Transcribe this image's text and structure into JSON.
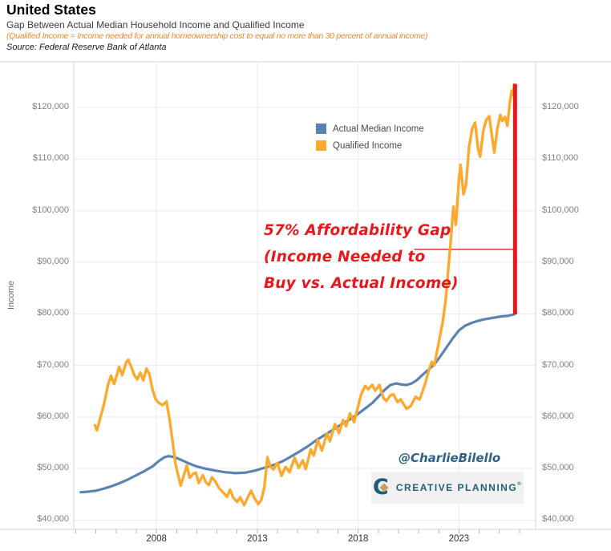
{
  "header": {
    "title": "United States",
    "subtitle": "Gap Between Actual Median Household Income and Qualified Income",
    "note": "(Qualified Income = Income needed for annual homeownership cost to equal no more than 30 percent of annual income)",
    "source": "Source: Federal Reserve Bank of Atlanta"
  },
  "y_axis_title": "Income",
  "watermark": "@CharlieBilello",
  "logo": {
    "company": "CREATIVE PLANNING",
    "reg_mark": "®"
  },
  "annotation": {
    "lines": [
      "57% Affordability Gap",
      "(Income Needed to",
      "Buy vs. Actual Income)"
    ],
    "color": "#e8171d"
  },
  "chart_data": {
    "type": "line",
    "title": "Gap Between Actual Median Household Income and Qualified Income",
    "xlabel": "",
    "ylabel": "Income",
    "grid": true,
    "legend_position": "top-center-inside",
    "x_domain": [
      2003.9,
      2026.8
    ],
    "y_domain": [
      38200,
      128900
    ],
    "x_ticks": [
      {
        "year": 2008,
        "label": "2008"
      },
      {
        "year": 2013,
        "label": "2013"
      },
      {
        "year": 2018,
        "label": "2018"
      },
      {
        "year": 2023,
        "label": "2023"
      }
    ],
    "x_minor_tick_years": [
      2004,
      2005,
      2006,
      2007,
      2008,
      2009,
      2010,
      2011,
      2012,
      2013,
      2014,
      2015,
      2016,
      2017,
      2018,
      2019,
      2020,
      2021,
      2022,
      2023,
      2024,
      2025,
      2026
    ],
    "y_ticks": [
      {
        "value": 40000,
        "label": "$40,000"
      },
      {
        "value": 50000,
        "label": "$50,000"
      },
      {
        "value": 60000,
        "label": "$60,000"
      },
      {
        "value": 70000,
        "label": "$70,000"
      },
      {
        "value": 80000,
        "label": "$80,000"
      },
      {
        "value": 90000,
        "label": "$90,000"
      },
      {
        "value": 100000,
        "label": "$100,000"
      },
      {
        "value": 110000,
        "label": "$110,000"
      },
      {
        "value": 120000,
        "label": "$120,000"
      }
    ],
    "series": [
      {
        "name": "Actual Median Income",
        "color": "#5b83b2",
        "points": [
          [
            2004.25,
            45400
          ],
          [
            2004.6,
            45500
          ],
          [
            2005.0,
            45700
          ],
          [
            2005.4,
            46100
          ],
          [
            2005.8,
            46600
          ],
          [
            2006.2,
            47200
          ],
          [
            2006.6,
            47900
          ],
          [
            2007.0,
            48700
          ],
          [
            2007.4,
            49500
          ],
          [
            2007.8,
            50400
          ],
          [
            2008.1,
            51400
          ],
          [
            2008.4,
            52200
          ],
          [
            2008.6,
            52400
          ],
          [
            2008.9,
            52200
          ],
          [
            2009.2,
            51700
          ],
          [
            2009.6,
            51000
          ],
          [
            2010.0,
            50400
          ],
          [
            2010.4,
            50000
          ],
          [
            2010.9,
            49600
          ],
          [
            2011.4,
            49300
          ],
          [
            2011.9,
            49100
          ],
          [
            2012.4,
            49200
          ],
          [
            2012.9,
            49600
          ],
          [
            2013.4,
            50200
          ],
          [
            2013.9,
            50800
          ],
          [
            2014.3,
            51500
          ],
          [
            2014.7,
            52400
          ],
          [
            2015.1,
            53300
          ],
          [
            2015.5,
            54300
          ],
          [
            2015.9,
            55400
          ],
          [
            2016.3,
            56400
          ],
          [
            2016.7,
            57400
          ],
          [
            2017.1,
            58400
          ],
          [
            2017.5,
            59300
          ],
          [
            2017.9,
            60300
          ],
          [
            2018.3,
            61500
          ],
          [
            2018.7,
            62700
          ],
          [
            2019.0,
            63900
          ],
          [
            2019.3,
            65200
          ],
          [
            2019.6,
            66200
          ],
          [
            2019.9,
            66500
          ],
          [
            2020.15,
            66300
          ],
          [
            2020.4,
            66200
          ],
          [
            2020.65,
            66500
          ],
          [
            2020.9,
            67100
          ],
          [
            2021.2,
            68200
          ],
          [
            2021.5,
            69200
          ],
          [
            2021.8,
            70300
          ],
          [
            2022.1,
            71900
          ],
          [
            2022.4,
            73600
          ],
          [
            2022.7,
            75300
          ],
          [
            2023.0,
            76800
          ],
          [
            2023.3,
            77700
          ],
          [
            2023.6,
            78200
          ],
          [
            2023.9,
            78600
          ],
          [
            2024.2,
            78900
          ],
          [
            2024.5,
            79100
          ],
          [
            2024.8,
            79300
          ],
          [
            2025.1,
            79500
          ],
          [
            2025.4,
            79600
          ],
          [
            2025.74,
            79900
          ]
        ]
      },
      {
        "name": "Qualified Income",
        "color": "#fbaa2f",
        "points": [
          [
            2004.95,
            58400
          ],
          [
            2005.05,
            57400
          ],
          [
            2005.2,
            59600
          ],
          [
            2005.4,
            62500
          ],
          [
            2005.6,
            66300
          ],
          [
            2005.75,
            68000
          ],
          [
            2005.9,
            66400
          ],
          [
            2006.05,
            68300
          ],
          [
            2006.15,
            69700
          ],
          [
            2006.3,
            68100
          ],
          [
            2006.5,
            70600
          ],
          [
            2006.6,
            71100
          ],
          [
            2006.75,
            69700
          ],
          [
            2006.9,
            68100
          ],
          [
            2007.05,
            67300
          ],
          [
            2007.2,
            68600
          ],
          [
            2007.35,
            67100
          ],
          [
            2007.5,
            69400
          ],
          [
            2007.65,
            68300
          ],
          [
            2007.8,
            65400
          ],
          [
            2007.95,
            63500
          ],
          [
            2008.1,
            62800
          ],
          [
            2008.3,
            62300
          ],
          [
            2008.5,
            63000
          ],
          [
            2008.65,
            59500
          ],
          [
            2008.8,
            55300
          ],
          [
            2008.95,
            50800
          ],
          [
            2009.1,
            48300
          ],
          [
            2009.2,
            46700
          ],
          [
            2009.35,
            48600
          ],
          [
            2009.5,
            50600
          ],
          [
            2009.65,
            48200
          ],
          [
            2009.8,
            48900
          ],
          [
            2009.95,
            49200
          ],
          [
            2010.1,
            47200
          ],
          [
            2010.3,
            48700
          ],
          [
            2010.45,
            47300
          ],
          [
            2010.6,
            46800
          ],
          [
            2010.75,
            48300
          ],
          [
            2010.9,
            47600
          ],
          [
            2011.1,
            46200
          ],
          [
            2011.3,
            45400
          ],
          [
            2011.5,
            44500
          ],
          [
            2011.65,
            45900
          ],
          [
            2011.8,
            44400
          ],
          [
            2012.0,
            43500
          ],
          [
            2012.15,
            44400
          ],
          [
            2012.35,
            42900
          ],
          [
            2012.55,
            44600
          ],
          [
            2012.7,
            45700
          ],
          [
            2012.85,
            44300
          ],
          [
            2013.05,
            43100
          ],
          [
            2013.2,
            43900
          ],
          [
            2013.35,
            46400
          ],
          [
            2013.5,
            52200
          ],
          [
            2013.65,
            50400
          ],
          [
            2013.8,
            49800
          ],
          [
            2014.0,
            51100
          ],
          [
            2014.2,
            48600
          ],
          [
            2014.4,
            50300
          ],
          [
            2014.6,
            49300
          ],
          [
            2014.85,
            52100
          ],
          [
            2015.05,
            50100
          ],
          [
            2015.25,
            51600
          ],
          [
            2015.4,
            49900
          ],
          [
            2015.65,
            53700
          ],
          [
            2015.8,
            52500
          ],
          [
            2016.0,
            55500
          ],
          [
            2016.2,
            53500
          ],
          [
            2016.45,
            56800
          ],
          [
            2016.6,
            55300
          ],
          [
            2016.85,
            58600
          ],
          [
            2017.05,
            56900
          ],
          [
            2017.25,
            59400
          ],
          [
            2017.4,
            58200
          ],
          [
            2017.6,
            60700
          ],
          [
            2017.8,
            59000
          ],
          [
            2018.0,
            62100
          ],
          [
            2018.15,
            64400
          ],
          [
            2018.35,
            66000
          ],
          [
            2018.5,
            65400
          ],
          [
            2018.7,
            66200
          ],
          [
            2018.85,
            65100
          ],
          [
            2019.05,
            66200
          ],
          [
            2019.25,
            63700
          ],
          [
            2019.4,
            63100
          ],
          [
            2019.6,
            64200
          ],
          [
            2019.75,
            64400
          ],
          [
            2019.95,
            62900
          ],
          [
            2020.1,
            63400
          ],
          [
            2020.4,
            61600
          ],
          [
            2020.6,
            62100
          ],
          [
            2020.85,
            63900
          ],
          [
            2021.05,
            63400
          ],
          [
            2021.3,
            66200
          ],
          [
            2021.5,
            69000
          ],
          [
            2021.65,
            70700
          ],
          [
            2021.78,
            70000
          ],
          [
            2022.0,
            74500
          ],
          [
            2022.2,
            78600
          ],
          [
            2022.35,
            83000
          ],
          [
            2022.5,
            90000
          ],
          [
            2022.62,
            95600
          ],
          [
            2022.72,
            100800
          ],
          [
            2022.85,
            97300
          ],
          [
            2023.0,
            106200
          ],
          [
            2023.08,
            108900
          ],
          [
            2023.22,
            103200
          ],
          [
            2023.35,
            105100
          ],
          [
            2023.5,
            112400
          ],
          [
            2023.65,
            115900
          ],
          [
            2023.8,
            117100
          ],
          [
            2023.95,
            111900
          ],
          [
            2024.05,
            110500
          ],
          [
            2024.2,
            115400
          ],
          [
            2024.35,
            117600
          ],
          [
            2024.5,
            118300
          ],
          [
            2024.62,
            114900
          ],
          [
            2024.75,
            111300
          ],
          [
            2024.9,
            115900
          ],
          [
            2025.05,
            118600
          ],
          [
            2025.15,
            117400
          ],
          [
            2025.28,
            118200
          ],
          [
            2025.4,
            116500
          ],
          [
            2025.52,
            120900
          ],
          [
            2025.62,
            123300
          ],
          [
            2025.68,
            122500
          ],
          [
            2025.74,
            124500
          ]
        ]
      }
    ],
    "gap_marker": {
      "label": "57% Affordability Gap",
      "year": 2025.78,
      "from_value": 79900,
      "to_value": 124600,
      "color": "#e8171d",
      "connector": {
        "value": 92500,
        "from_year": 2020.78,
        "to_year": 2025.72
      }
    }
  }
}
